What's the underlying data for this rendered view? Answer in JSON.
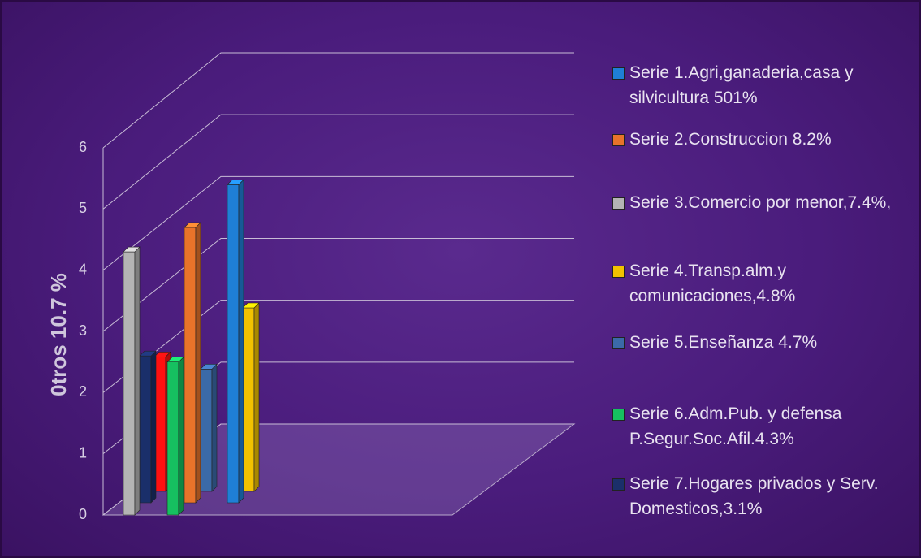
{
  "chart_data": {
    "type": "bar3d",
    "ylabel": "0tros 10.7 %",
    "ylim": [
      0,
      6
    ],
    "yticks": [
      0,
      1,
      2,
      3,
      4,
      5,
      6
    ],
    "grid": true,
    "series": [
      {
        "name": "Serie 1.Agri,ganaderia,casa y silvicultura 501%",
        "color": "#1f7fd6",
        "values": [
          5.2
        ]
      },
      {
        "name": "Serie 2.Construccion 8.2%",
        "color": "#e8732a",
        "values": [
          4.5
        ]
      },
      {
        "name": "Serie 3.Comercio por menor,7.4%,",
        "color": "#b4b4b4",
        "values": [
          4.3
        ]
      },
      {
        "name": "Serie 4.Transp.alm.y comunicaciones,4.8%",
        "color": "#f2c200",
        "values": [
          3.0
        ]
      },
      {
        "name": "Serie 5.Enseñanza 4.7%",
        "color": "#3b6aa8",
        "values": [
          2.0
        ]
      },
      {
        "name": "Serie 6.Adm.Pub. y defensa P.Segur.Soc.Afil.4.3%",
        "color": "#16c060",
        "values": [
          2.5
        ]
      },
      {
        "name": "Serie 7.Hogares privados y Serv. Domesticos,3.1%",
        "color": "#1a2f6a",
        "values": [
          2.4
        ]
      },
      {
        "color": "#ff1010",
        "values": [
          2.2
        ]
      }
    ]
  }
}
